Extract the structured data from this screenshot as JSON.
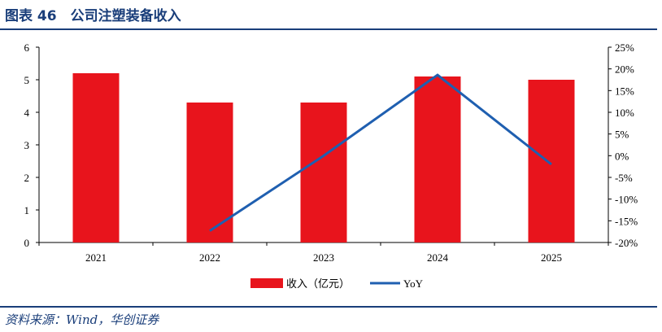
{
  "header": {
    "title": "图表 46　公司注塑装备收入"
  },
  "footer": {
    "source": "资料来源：Wind，华创证券"
  },
  "chart_data": {
    "type": "bar",
    "categories": [
      "2021",
      "2022",
      "2023",
      "2024",
      "2025"
    ],
    "series": [
      {
        "name": "收入（亿元）",
        "type": "bar",
        "axis": "left",
        "color": "#e8141c",
        "values": [
          5.2,
          4.3,
          4.3,
          5.1,
          5.0
        ]
      },
      {
        "name": "YoY",
        "type": "line",
        "axis": "right",
        "color": "#1f5fb0",
        "values": [
          null,
          -17.3,
          0.0,
          18.6,
          -2.0
        ]
      }
    ],
    "left_axis": {
      "ylim": [
        0,
        6
      ],
      "ticks": [
        "0",
        "1",
        "2",
        "3",
        "4",
        "5",
        "6"
      ]
    },
    "right_axis": {
      "ylim": [
        -20,
        25
      ],
      "ticks": [
        "-20%",
        "-15%",
        "-10%",
        "-5%",
        "0%",
        "5%",
        "10%",
        "15%",
        "20%",
        "25%"
      ]
    },
    "legend": "bottom-center",
    "grid": false
  }
}
